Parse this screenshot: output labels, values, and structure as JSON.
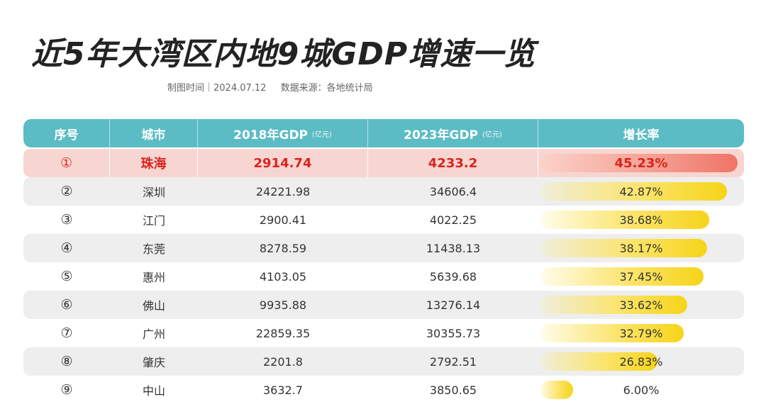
{
  "title": "近5年大湾区内地9城GDP增速一览",
  "meta": {
    "date": "制图时间｜2024.07.12",
    "source": "数据来源：各地统计局"
  },
  "colors": {
    "header": "#5cbcc5",
    "highlight_row": "#f7d6d1",
    "highlight_text": "#d8231e",
    "bar_yellow": "#f6d419",
    "bar_red": "#ef7467"
  },
  "chart_data": {
    "type": "table",
    "columns": [
      {
        "label": "序号",
        "unit": ""
      },
      {
        "label": "城市",
        "unit": ""
      },
      {
        "label": "2018年GDP",
        "unit": "(亿元)"
      },
      {
        "label": "2023年GDP",
        "unit": "(亿元)"
      },
      {
        "label": "增长率",
        "unit": ""
      }
    ],
    "rows": [
      {
        "rank": "①",
        "city": "珠海",
        "gdp2018": "2914.74",
        "gdp2023": "4233.2",
        "growth": "45.23%",
        "growth_value": 45.23
      },
      {
        "rank": "②",
        "city": "深圳",
        "gdp2018": "24221.98",
        "gdp2023": "34606.4",
        "growth": "42.87%",
        "growth_value": 42.87
      },
      {
        "rank": "③",
        "city": "江门",
        "gdp2018": "2900.41",
        "gdp2023": "4022.25",
        "growth": "38.68%",
        "growth_value": 38.68
      },
      {
        "rank": "④",
        "city": "东莞",
        "gdp2018": "8278.59",
        "gdp2023": "11438.13",
        "growth": "38.17%",
        "growth_value": 38.17
      },
      {
        "rank": "⑤",
        "city": "惠州",
        "gdp2018": "4103.05",
        "gdp2023": "5639.68",
        "growth": "37.45%",
        "growth_value": 37.45
      },
      {
        "rank": "⑥",
        "city": "佛山",
        "gdp2018": "9935.88",
        "gdp2023": "13276.14",
        "growth": "33.62%",
        "growth_value": 33.62
      },
      {
        "rank": "⑦",
        "city": "广州",
        "gdp2018": "22859.35",
        "gdp2023": "30355.73",
        "growth": "32.79%",
        "growth_value": 32.79
      },
      {
        "rank": "⑧",
        "city": "肇庆",
        "gdp2018": "2201.8",
        "gdp2023": "2792.51",
        "growth": "26.83%",
        "growth_value": 26.83
      },
      {
        "rank": "⑨",
        "city": "中山",
        "gdp2018": "3632.7",
        "gdp2023": "3850.65",
        "growth": "6.00%",
        "growth_value": 6.0
      }
    ]
  }
}
